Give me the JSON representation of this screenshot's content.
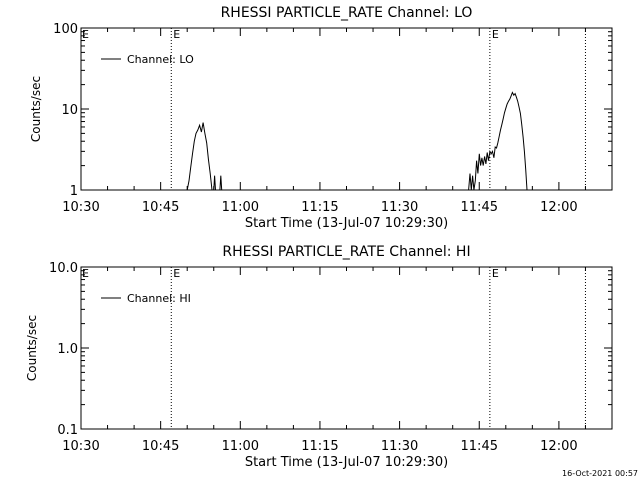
{
  "footer": {
    "timestamp": "16-Oct-2021 00:57"
  },
  "chart_data": [
    {
      "type": "line",
      "title": "RHESSI PARTICLE_RATE Channel: LO",
      "xlabel": "Start Time (13-Jul-07 10:29:30)",
      "ylabel": "Counts/sec",
      "yscale": "log",
      "xlim": [
        "10:30",
        "12:10"
      ],
      "ylim": [
        1,
        100
      ],
      "xticks": [
        "10:30",
        "10:45",
        "11:00",
        "11:15",
        "11:30",
        "11:45",
        "12:00"
      ],
      "yticks": [
        "1",
        "10",
        "100"
      ],
      "grid": false,
      "legend": {
        "position": "top-left",
        "entries": [
          "Channel: LO"
        ]
      },
      "event_markers": [
        {
          "time": "10:47",
          "label": "E"
        },
        {
          "time": "11:47",
          "label": "E"
        },
        {
          "time": "12:05",
          "label": ""
        }
      ],
      "series": [
        {
          "name": "Channel: LO",
          "segments": [
            [
              [
                "10:50:00",
                1.0
              ],
              [
                "10:50:20",
                1.3
              ],
              [
                "10:50:40",
                1.9
              ],
              [
                "10:51:00",
                2.8
              ],
              [
                "10:51:20",
                4.0
              ],
              [
                "10:51:40",
                5.0
              ],
              [
                "10:52:00",
                5.5
              ],
              [
                "10:52:20",
                6.3
              ],
              [
                "10:52:40",
                5.2
              ],
              [
                "10:53:00",
                6.8
              ],
              [
                "10:53:20",
                5.0
              ],
              [
                "10:53:40",
                3.8
              ],
              [
                "10:54:00",
                2.4
              ],
              [
                "10:54:20",
                1.6
              ],
              [
                "10:54:40",
                1.0
              ]
            ],
            [
              [
                "10:55:00",
                1.0
              ],
              [
                "10:55:10",
                1.5
              ],
              [
                "10:55:20",
                1.0
              ]
            ],
            [
              [
                "10:56:10",
                1.0
              ],
              [
                "10:56:20",
                1.5
              ],
              [
                "10:56:30",
                1.0
              ]
            ],
            [
              [
                "11:43:00",
                1.0
              ],
              [
                "11:43:15",
                1.6
              ],
              [
                "11:43:30",
                1.0
              ],
              [
                "11:43:45",
                1.5
              ],
              [
                "11:44:00",
                1.0
              ],
              [
                "11:44:15",
                1.3
              ],
              [
                "11:44:30",
                2.3
              ],
              [
                "11:44:45",
                1.6
              ],
              [
                "11:45:00",
                2.8
              ],
              [
                "11:45:15",
                2.0
              ],
              [
                "11:45:30",
                2.5
              ],
              [
                "11:45:45",
                2.0
              ],
              [
                "11:46:00",
                2.6
              ],
              [
                "11:46:15",
                2.1
              ],
              [
                "11:46:30",
                2.9
              ],
              [
                "11:46:45",
                2.3
              ],
              [
                "11:47:00",
                3.0
              ],
              [
                "11:47:15",
                2.8
              ],
              [
                "11:47:30",
                3.0
              ],
              [
                "11:47:45",
                2.5
              ],
              [
                "11:48:00",
                3.4
              ],
              [
                "11:48:15",
                3.3
              ],
              [
                "11:48:30",
                3.8
              ],
              [
                "11:48:45",
                4.6
              ],
              [
                "11:49:00",
                5.5
              ],
              [
                "11:49:15",
                6.4
              ],
              [
                "11:49:30",
                7.5
              ],
              [
                "11:49:45",
                9.0
              ],
              [
                "11:50:00",
                10.2
              ],
              [
                "11:50:15",
                11.5
              ],
              [
                "11:50:30",
                12.5
              ],
              [
                "11:50:45",
                13.2
              ],
              [
                "11:51:00",
                14.5
              ],
              [
                "11:51:15",
                16.0
              ],
              [
                "11:51:30",
                14.8
              ],
              [
                "11:51:45",
                15.5
              ],
              [
                "11:52:00",
                14.0
              ],
              [
                "11:52:15",
                12.5
              ],
              [
                "11:52:30",
                10.5
              ],
              [
                "11:52:45",
                8.8
              ],
              [
                "11:53:00",
                6.5
              ],
              [
                "11:53:15",
                4.5
              ],
              [
                "11:53:30",
                3.0
              ],
              [
                "11:53:45",
                1.8
              ],
              [
                "11:54:00",
                1.0
              ]
            ]
          ]
        }
      ]
    },
    {
      "type": "line",
      "title": "RHESSI PARTICLE_RATE Channel: HI",
      "xlabel": "Start Time (13-Jul-07 10:29:30)",
      "ylabel": "Counts/sec",
      "yscale": "log",
      "xlim": [
        "10:30",
        "12:10"
      ],
      "ylim": [
        0.1,
        10
      ],
      "xticks": [
        "10:30",
        "10:45",
        "11:00",
        "11:15",
        "11:30",
        "11:45",
        "12:00"
      ],
      "yticks": [
        "0.1",
        "1.0",
        "10.0"
      ],
      "grid": false,
      "legend": {
        "position": "top-left",
        "entries": [
          "Channel: HI"
        ]
      },
      "event_markers": [
        {
          "time": "10:47",
          "label": "E"
        },
        {
          "time": "11:47",
          "label": "E"
        },
        {
          "time": "12:05",
          "label": ""
        }
      ],
      "series": [
        {
          "name": "Channel: HI",
          "segments": []
        }
      ]
    }
  ]
}
